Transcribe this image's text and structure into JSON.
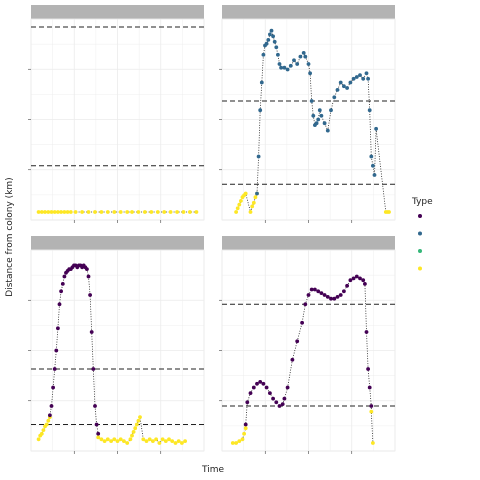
{
  "chart_data": {
    "type": "scatter",
    "title": "",
    "xlabel": "Time",
    "ylabel": "Distance from colony (km)",
    "legend": {
      "title": "Type",
      "placement": "right",
      "entries": [
        {
          "label": "",
          "color": "#440154"
        },
        {
          "label": "",
          "color": "#31688e"
        },
        {
          "label": "",
          "color": "#35b779"
        },
        {
          "label": "",
          "color": "#fde725"
        }
      ]
    },
    "grid": true,
    "colors": {
      "purple": "#440154",
      "blue": "#31688e",
      "green": "#35b779",
      "yellow": "#fde725",
      "strip": "#b3b3b3",
      "grid": "#ebebeb"
    },
    "panels": [
      {
        "xlim": [
          0,
          100
        ],
        "ylim": [
          0,
          100
        ],
        "hlines": [
          100,
          25
        ],
        "series": [
          {
            "type": "yellow",
            "points": [
              [
                1,
                0
              ],
              [
                3,
                0
              ],
              [
                5,
                0
              ],
              [
                7,
                0
              ],
              [
                9,
                0
              ],
              [
                11,
                0
              ],
              [
                13,
                0
              ],
              [
                15,
                0
              ],
              [
                17,
                0
              ],
              [
                19,
                0
              ],
              [
                21,
                0
              ],
              [
                24,
                0
              ],
              [
                28,
                0
              ],
              [
                32,
                0
              ],
              [
                36,
                0
              ],
              [
                40,
                0
              ],
              [
                44,
                0
              ],
              [
                48,
                0
              ],
              [
                52,
                0
              ],
              [
                56,
                0
              ],
              [
                59,
                0
              ],
              [
                63,
                0
              ],
              [
                67,
                0
              ],
              [
                71,
                0
              ],
              [
                75,
                0
              ],
              [
                79,
                0
              ],
              [
                83,
                0
              ],
              [
                87,
                0
              ],
              [
                91,
                0
              ],
              [
                95,
                0
              ],
              [
                99,
                0
              ]
            ]
          }
        ]
      },
      {
        "xlim": [
          0,
          100
        ],
        "ylim": [
          0,
          100
        ],
        "hlines": [
          60,
          15
        ],
        "series": [
          {
            "type": "yellow",
            "points": [
              [
                5,
                0
              ],
              [
                6,
                2
              ],
              [
                7,
                4
              ],
              [
                8,
                6
              ],
              [
                9,
                8
              ],
              [
                10,
                9
              ],
              [
                11,
                10
              ],
              [
                14,
                0
              ],
              [
                15,
                3
              ],
              [
                16,
                5
              ],
              [
                17,
                8
              ],
              [
                18,
                10
              ]
            ]
          },
          {
            "type": "blue",
            "points": [
              [
                18,
                10
              ],
              [
                19,
                30
              ],
              [
                20,
                55
              ],
              [
                21,
                70
              ],
              [
                22,
                85
              ],
              [
                23,
                90
              ],
              [
                24,
                91
              ],
              [
                25,
                93
              ],
              [
                26,
                96
              ],
              [
                27,
                98
              ],
              [
                28,
                95
              ],
              [
                29,
                92
              ],
              [
                30,
                89
              ],
              [
                31,
                85
              ],
              [
                32,
                80
              ],
              [
                33,
                78
              ],
              [
                35,
                78
              ],
              [
                37,
                77
              ],
              [
                39,
                79
              ],
              [
                41,
                82
              ],
              [
                43,
                80
              ],
              [
                45,
                84
              ],
              [
                47,
                86
              ],
              [
                48,
                84
              ],
              [
                50,
                80
              ],
              [
                51,
                75
              ],
              [
                52,
                60
              ],
              [
                53,
                52
              ],
              [
                54,
                47
              ],
              [
                55,
                48
              ],
              [
                56,
                50
              ],
              [
                57,
                55
              ],
              [
                58,
                52
              ],
              [
                60,
                48
              ],
              [
                62,
                44
              ],
              [
                64,
                55
              ],
              [
                66,
                62
              ],
              [
                68,
                66
              ],
              [
                70,
                70
              ],
              [
                72,
                68
              ],
              [
                74,
                67
              ],
              [
                76,
                70
              ],
              [
                78,
                72
              ],
              [
                80,
                73
              ],
              [
                82,
                74
              ],
              [
                84,
                72
              ],
              [
                86,
                75
              ],
              [
                87,
                72
              ],
              [
                88,
                55
              ],
              [
                89,
                30
              ],
              [
                90,
                25
              ],
              [
                91,
                20
              ],
              [
                92,
                45
              ]
            ]
          },
          {
            "type": "yellow",
            "points": [
              [
                98,
                0
              ],
              [
                99,
                0
              ],
              [
                100,
                0
              ]
            ]
          }
        ]
      },
      {
        "xlim": [
          0,
          100
        ],
        "ylim": [
          0,
          100
        ],
        "hlines": [
          40,
          10
        ],
        "series": [
          {
            "type": "yellow",
            "points": [
              [
                1,
                2
              ],
              [
                2,
                4
              ],
              [
                3,
                5
              ],
              [
                4,
                7
              ],
              [
                5,
                9
              ],
              [
                6,
                10
              ],
              [
                7,
                12
              ],
              [
                8,
                14
              ]
            ]
          },
          {
            "type": "purple",
            "points": [
              [
                8,
                15
              ],
              [
                9,
                20
              ],
              [
                10,
                30
              ],
              [
                11,
                40
              ],
              [
                12,
                50
              ],
              [
                13,
                62
              ],
              [
                14,
                75
              ],
              [
                15,
                82
              ],
              [
                16,
                86
              ],
              [
                17,
                90
              ],
              [
                18,
                92
              ],
              [
                19,
                93
              ],
              [
                20,
                94
              ],
              [
                21,
                94
              ],
              [
                22,
                95
              ],
              [
                23,
                96
              ],
              [
                24,
                96
              ],
              [
                25,
                95
              ],
              [
                26,
                96
              ],
              [
                27,
                96
              ],
              [
                28,
                95
              ],
              [
                29,
                96
              ],
              [
                30,
                95
              ],
              [
                31,
                94
              ],
              [
                32,
                90
              ],
              [
                33,
                80
              ],
              [
                34,
                60
              ],
              [
                35,
                40
              ],
              [
                36,
                20
              ],
              [
                37,
                10
              ],
              [
                38,
                5
              ]
            ]
          },
          {
            "type": "yellow",
            "points": [
              [
                38,
                3
              ],
              [
                40,
                2
              ],
              [
                42,
                1
              ],
              [
                44,
                2
              ],
              [
                46,
                1
              ],
              [
                48,
                2
              ],
              [
                50,
                1
              ],
              [
                52,
                2
              ],
              [
                54,
                1
              ],
              [
                56,
                0
              ],
              [
                58,
                2
              ],
              [
                59,
                4
              ],
              [
                60,
                6
              ],
              [
                61,
                8
              ],
              [
                62,
                10
              ],
              [
                63,
                12
              ],
              [
                64,
                14
              ],
              [
                66,
                2
              ],
              [
                68,
                1
              ],
              [
                70,
                2
              ],
              [
                72,
                1
              ],
              [
                74,
                2
              ],
              [
                76,
                0
              ],
              [
                78,
                2
              ],
              [
                80,
                1
              ],
              [
                82,
                2
              ],
              [
                84,
                1
              ],
              [
                86,
                0
              ],
              [
                88,
                1
              ],
              [
                90,
                0
              ],
              [
                92,
                1
              ]
            ]
          }
        ]
      },
      {
        "xlim": [
          0,
          100
        ],
        "ylim": [
          0,
          100
        ],
        "hlines": [
          75,
          20
        ],
        "series": [
          {
            "type": "yellow",
            "points": [
              [
                3,
                0
              ],
              [
                5,
                0
              ],
              [
                7,
                1
              ],
              [
                9,
                2
              ],
              [
                10,
                5
              ],
              [
                11,
                8
              ]
            ]
          },
          {
            "type": "purple",
            "points": [
              [
                11,
                10
              ],
              [
                12,
                22
              ],
              [
                14,
                27
              ],
              [
                16,
                30
              ],
              [
                18,
                32
              ],
              [
                20,
                33
              ],
              [
                22,
                32
              ],
              [
                24,
                30
              ],
              [
                26,
                27
              ],
              [
                28,
                24
              ],
              [
                30,
                22
              ],
              [
                32,
                20
              ],
              [
                34,
                21
              ],
              [
                35,
                24
              ],
              [
                37,
                30
              ],
              [
                40,
                45
              ],
              [
                43,
                55
              ],
              [
                46,
                65
              ],
              [
                48,
                75
              ],
              [
                50,
                80
              ],
              [
                52,
                83
              ],
              [
                54,
                83
              ],
              [
                56,
                82
              ],
              [
                58,
                81
              ],
              [
                60,
                80
              ],
              [
                62,
                79
              ],
              [
                64,
                78
              ],
              [
                66,
                78
              ],
              [
                68,
                79
              ],
              [
                70,
                80
              ],
              [
                72,
                82
              ],
              [
                74,
                85
              ],
              [
                76,
                88
              ],
              [
                78,
                89
              ],
              [
                80,
                90
              ],
              [
                82,
                89
              ],
              [
                84,
                88
              ],
              [
                85,
                86
              ],
              [
                86,
                60
              ],
              [
                87,
                40
              ],
              [
                88,
                30
              ],
              [
                89,
                20
              ]
            ]
          },
          {
            "type": "yellow",
            "points": [
              [
                89,
                17
              ],
              [
                90,
                0
              ]
            ]
          }
        ]
      }
    ]
  }
}
